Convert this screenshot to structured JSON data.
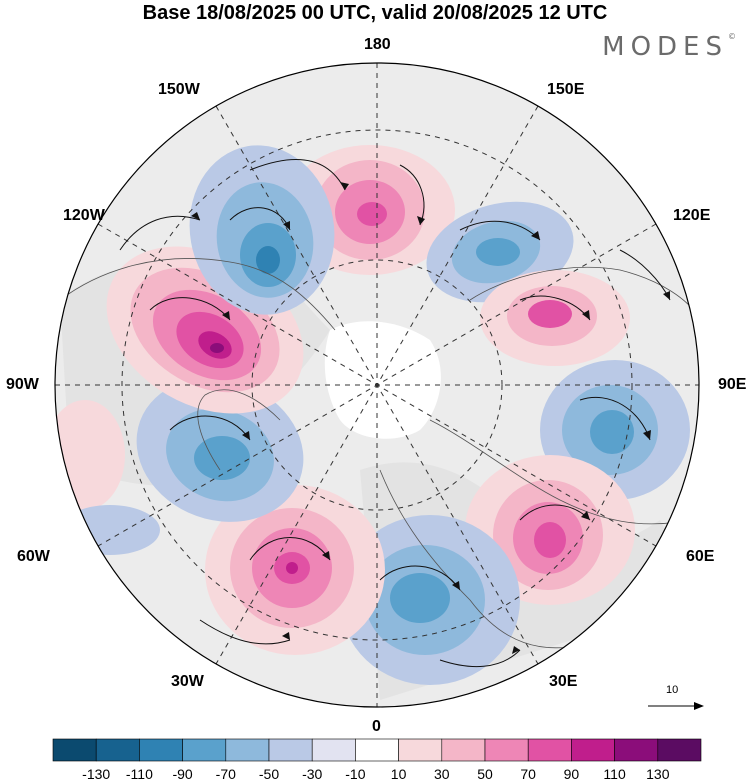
{
  "title": "Base 18/08/2025 00 UTC, valid 20/08/2025 12 UTC",
  "brand": "MODES",
  "brand_mark": "©",
  "longitude_labels": {
    "top": "180",
    "bottom": "0",
    "left": "90W",
    "right": "90E",
    "upper_left_1": "150W",
    "upper_left_2": "120W",
    "upper_right_1": "150E",
    "upper_right_2": "120E",
    "lower_left_1": "60W",
    "lower_left_2": "30W",
    "lower_right_1": "60E",
    "lower_right_2": "30E"
  },
  "reference_vector": {
    "label": "10"
  },
  "colorbar": {
    "labels": [
      "-130",
      "-110",
      "-90",
      "-70",
      "-50",
      "-30",
      "-10",
      "10",
      "30",
      "50",
      "70",
      "90",
      "110",
      "130"
    ],
    "colors": [
      "#0b4a6f",
      "#17628f",
      "#2f82b3",
      "#5aa1cc",
      "#8eb9dc",
      "#bac9e6",
      "#e2e3f1",
      "#ffffff",
      "#f7d9dc",
      "#f4b6c8",
      "#ee86b6",
      "#e152a4",
      "#c01e8c",
      "#8b0d7a",
      "#5b0c62"
    ]
  },
  "anomaly_centers": [
    {
      "name": "high-150e-30n",
      "sign": "positive",
      "strength": 70
    },
    {
      "name": "low-135e",
      "sign": "negative",
      "strength": 50
    },
    {
      "name": "high-100e",
      "sign": "positive",
      "strength": 70
    },
    {
      "name": "low-80e",
      "sign": "negative",
      "strength": 50
    },
    {
      "name": "high-60e",
      "sign": "positive",
      "strength": 80
    },
    {
      "name": "low-europe",
      "sign": "negative",
      "strength": 50
    },
    {
      "name": "high-atlantic",
      "sign": "positive",
      "strength": 90
    },
    {
      "name": "low-labrador",
      "sign": "negative",
      "strength": 70
    },
    {
      "name": "high-canada",
      "sign": "positive",
      "strength": 110
    },
    {
      "name": "low-alaska-west",
      "sign": "negative",
      "strength": 80
    }
  ]
}
